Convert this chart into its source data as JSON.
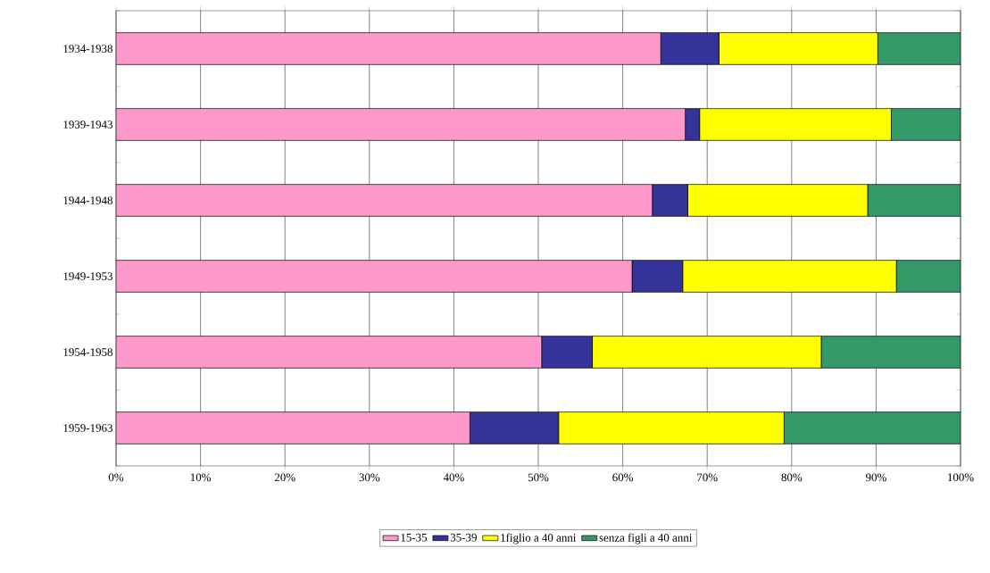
{
  "chart_data": {
    "type": "bar",
    "orientation": "horizontal",
    "stacked": true,
    "categories": [
      "1934-1938",
      "1939-1943",
      "1944-1948",
      "1949-1953",
      "1954-1958",
      "1959-1963"
    ],
    "series": [
      {
        "name": "15-35",
        "color": "#ff99cc",
        "values": [
          64.5,
          67.4,
          63.5,
          61.1,
          50.4,
          41.9
        ]
      },
      {
        "name": "35-39",
        "color": "#333399",
        "values": [
          6.9,
          1.7,
          4.2,
          6.0,
          6.0,
          10.5
        ]
      },
      {
        "name": "1figlio a 40 anni",
        "color": "#ffff00",
        "values": [
          18.8,
          22.7,
          21.3,
          25.3,
          27.1,
          26.7
        ]
      },
      {
        "name": "senza figli a 40 anni",
        "color": "#339966",
        "values": [
          9.8,
          8.2,
          11.0,
          7.6,
          16.5,
          20.9
        ]
      }
    ],
    "xlim": [
      0,
      100
    ],
    "xticks": [
      {
        "value": 0,
        "label": "0%"
      },
      {
        "value": 10,
        "label": "10%"
      },
      {
        "value": 20,
        "label": "20%"
      },
      {
        "value": 30,
        "label": "30%"
      },
      {
        "value": 40,
        "label": "40%"
      },
      {
        "value": 50,
        "label": "50%"
      },
      {
        "value": 60,
        "label": "60%"
      },
      {
        "value": 70,
        "label": "70%"
      },
      {
        "value": 80,
        "label": "80%"
      },
      {
        "value": 90,
        "label": "90%"
      },
      {
        "value": 100,
        "label": "100%"
      }
    ],
    "grid": "x",
    "legend": "bottom"
  }
}
